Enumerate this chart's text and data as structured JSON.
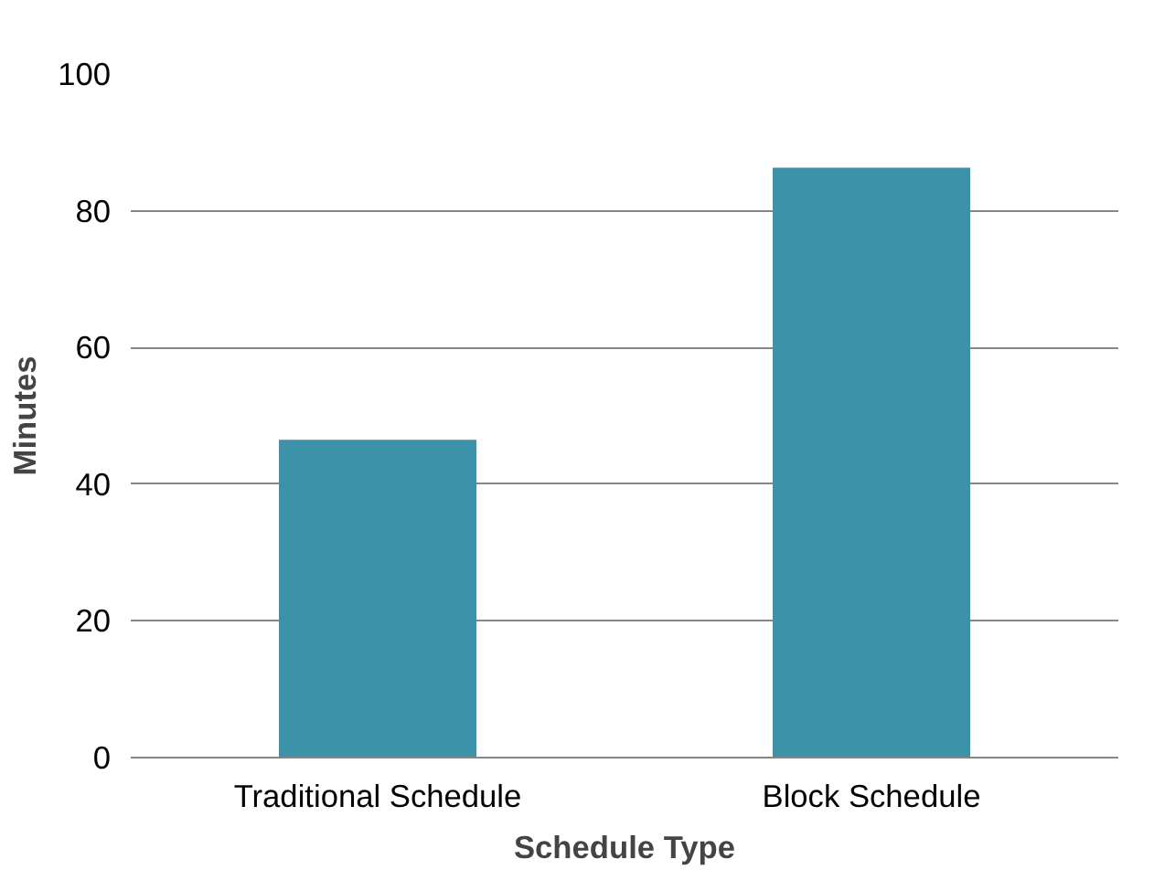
{
  "chart_data": {
    "type": "bar",
    "xlabel": "Schedule Type",
    "ylabel": "Minutes",
    "categories": [
      "Traditional Schedule",
      "Block Schedule"
    ],
    "values": [
      46.5,
      86.3
    ],
    "color": "#3b92a9",
    "ylim": [
      0,
      100
    ],
    "yticks": [
      0,
      20,
      40,
      60,
      80,
      100
    ],
    "grid": "y"
  }
}
